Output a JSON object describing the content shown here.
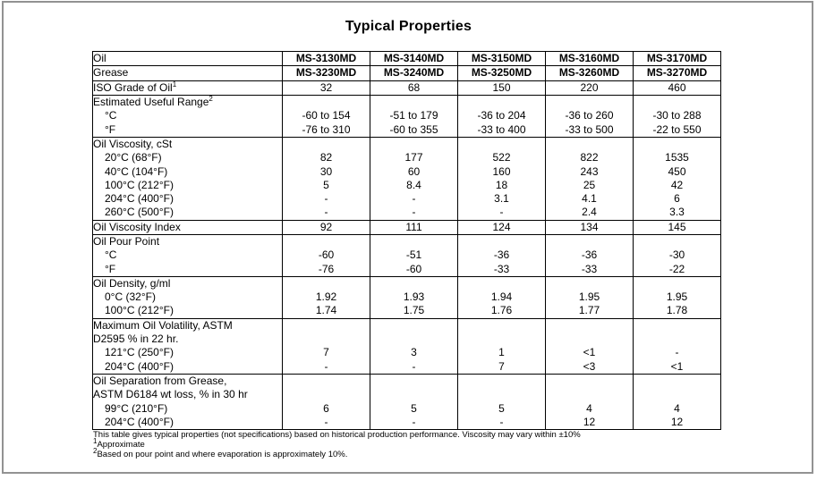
{
  "page": {
    "title": "Typical Properties",
    "footnotes": [
      {
        "sup": "",
        "text": "This table gives typical properties (not specifications) based on historical production performance. Viscosity may vary within ±10%"
      },
      {
        "sup": "1",
        "text": "Approximate"
      },
      {
        "sup": "2",
        "text": "Based on pour point and where evaporation is approximately 10%."
      }
    ],
    "colors": {
      "text": "#000000",
      "table_border": "#000000",
      "page_border": "#929292",
      "background": "#ffffff"
    }
  },
  "table": {
    "columns": [
      "label",
      "MS-3130MD",
      "MS-3140MD",
      "MS-3150MD",
      "MS-3160MD",
      "MS-3170MD"
    ],
    "rows": [
      {
        "label": "Oil",
        "sec": true,
        "bold": true,
        "values": [
          "MS-3130MD",
          "MS-3140MD",
          "MS-3150MD",
          "MS-3160MD",
          "MS-3170MD"
        ]
      },
      {
        "label": "Grease",
        "sec": true,
        "bold": true,
        "values": [
          "MS-3230MD",
          "MS-3240MD",
          "MS-3250MD",
          "MS-3260MD",
          "MS-3270MD"
        ]
      },
      {
        "label": "ISO Grade of Oil",
        "sup": "1",
        "sec": true,
        "values": [
          "32",
          "68",
          "150",
          "220",
          "460"
        ]
      },
      {
        "label": "Estimated Useful Range",
        "sup": "2",
        "sec": true,
        "values": []
      },
      {
        "label": "°C",
        "indent": true,
        "values": [
          "-60 to 154",
          "-51 to 179",
          "-36 to 204",
          "-36 to 260",
          "-30 to 288"
        ]
      },
      {
        "label": "°F",
        "indent": true,
        "values": [
          "-76 to 310",
          "-60 to 355",
          "-33 to 400",
          "-33 to 500",
          "-22 to 550"
        ]
      },
      {
        "label": "Oil Viscosity, cSt",
        "sec": true,
        "values": []
      },
      {
        "label": "20°C (68°F)",
        "indent": true,
        "values": [
          "82",
          "177",
          "522",
          "822",
          "1535"
        ]
      },
      {
        "label": "40°C (104°F)",
        "indent": true,
        "values": [
          "30",
          "60",
          "160",
          "243",
          "450"
        ]
      },
      {
        "label": "100°C (212°F)",
        "indent": true,
        "values": [
          "5",
          "8.4",
          "18",
          "25",
          "42"
        ]
      },
      {
        "label": "204°C (400°F)",
        "indent": true,
        "values": [
          "-",
          "-",
          "3.1",
          "4.1",
          "6"
        ]
      },
      {
        "label": "260°C (500°F)",
        "indent": true,
        "values": [
          "-",
          "-",
          "-",
          "2.4",
          "3.3"
        ]
      },
      {
        "label": "Oil Viscosity Index",
        "sec": true,
        "values": [
          "92",
          "111",
          "124",
          "134",
          "145"
        ]
      },
      {
        "label": "Oil Pour Point",
        "sec": true,
        "values": []
      },
      {
        "label": "°C",
        "indent": true,
        "values": [
          "-60",
          "-51",
          "-36",
          "-36",
          "-30"
        ]
      },
      {
        "label": "°F",
        "indent": true,
        "values": [
          "-76",
          "-60",
          "-33",
          "-33",
          "-22"
        ]
      },
      {
        "label": "Oil Density, g/ml",
        "sec": true,
        "values": []
      },
      {
        "label": "0°C (32°F)",
        "indent": true,
        "values": [
          "1.92",
          "1.93",
          "1.94",
          "1.95",
          "1.95"
        ]
      },
      {
        "label": "100°C (212°F)",
        "indent": true,
        "values": [
          "1.74",
          "1.75",
          "1.76",
          "1.77",
          "1.78"
        ]
      },
      {
        "label": "Maximum Oil Volatility, ASTM",
        "sec": true,
        "values": []
      },
      {
        "label": "D2595 % in 22 hr.",
        "values": []
      },
      {
        "label": "121°C (250°F)",
        "indent": true,
        "values": [
          "7",
          "3",
          "1",
          "<1",
          "-"
        ]
      },
      {
        "label": "204°C (400°F)",
        "indent": true,
        "values": [
          "-",
          "-",
          "7",
          "<3",
          "<1"
        ]
      },
      {
        "label": "Oil Separation from Grease,",
        "sec": true,
        "values": []
      },
      {
        "label": "ASTM D6184 wt loss, % in 30 hr",
        "values": []
      },
      {
        "label": "99°C (210°F)",
        "indent": true,
        "values": [
          "6",
          "5",
          "5",
          "4",
          "4"
        ]
      },
      {
        "label": "204°C (400°F)",
        "indent": true,
        "values": [
          "-",
          "-",
          "-",
          "12",
          "12"
        ]
      }
    ]
  }
}
